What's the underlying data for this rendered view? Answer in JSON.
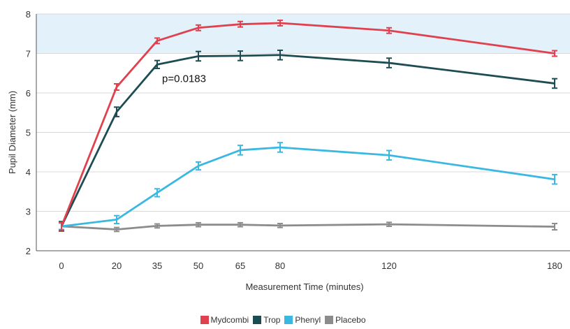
{
  "chart_data": {
    "type": "line",
    "title": "",
    "xlabel": "Measurement Time (minutes)",
    "ylabel": "Pupil Diameter (mm)",
    "x": [
      0,
      20,
      35,
      50,
      65,
      80,
      120,
      180
    ],
    "x_tick_labels": [
      "0",
      "20",
      "35",
      "50",
      "65",
      "80",
      "120",
      "180"
    ],
    "y_ticks": [
      "2",
      "3",
      "4",
      "5",
      "6",
      "7",
      "8"
    ],
    "ylim": [
      2,
      8
    ],
    "shaded_band": [
      7,
      8
    ],
    "grid": "horizontal",
    "legend_position": "bottom-center",
    "annotation": "p=0.0183",
    "series": [
      {
        "name": "Mydcombi",
        "color": "#e0414f",
        "values": [
          2.62,
          6.15,
          7.32,
          7.65,
          7.74,
          7.77,
          7.58,
          7.0
        ],
        "errors": [
          0.1,
          0.08,
          0.07,
          0.07,
          0.07,
          0.07,
          0.07,
          0.07
        ]
      },
      {
        "name": "Trop",
        "color": "#1d4d52",
        "values": [
          2.62,
          5.52,
          6.72,
          6.93,
          6.94,
          6.96,
          6.76,
          6.24
        ],
        "errors": [
          0.12,
          0.12,
          0.1,
          0.12,
          0.12,
          0.12,
          0.12,
          0.12
        ]
      },
      {
        "name": "Phenyl",
        "color": "#3bb8e2",
        "values": [
          2.62,
          2.79,
          3.47,
          4.15,
          4.55,
          4.62,
          4.42,
          3.81
        ],
        "errors": [
          0.08,
          0.1,
          0.1,
          0.1,
          0.12,
          0.12,
          0.12,
          0.12
        ]
      },
      {
        "name": "Placebo",
        "color": "#8c8c8c",
        "values": [
          2.62,
          2.54,
          2.63,
          2.66,
          2.66,
          2.64,
          2.67,
          2.61
        ],
        "errors": [
          0.08,
          0.05,
          0.05,
          0.05,
          0.05,
          0.05,
          0.05,
          0.08
        ]
      }
    ]
  }
}
